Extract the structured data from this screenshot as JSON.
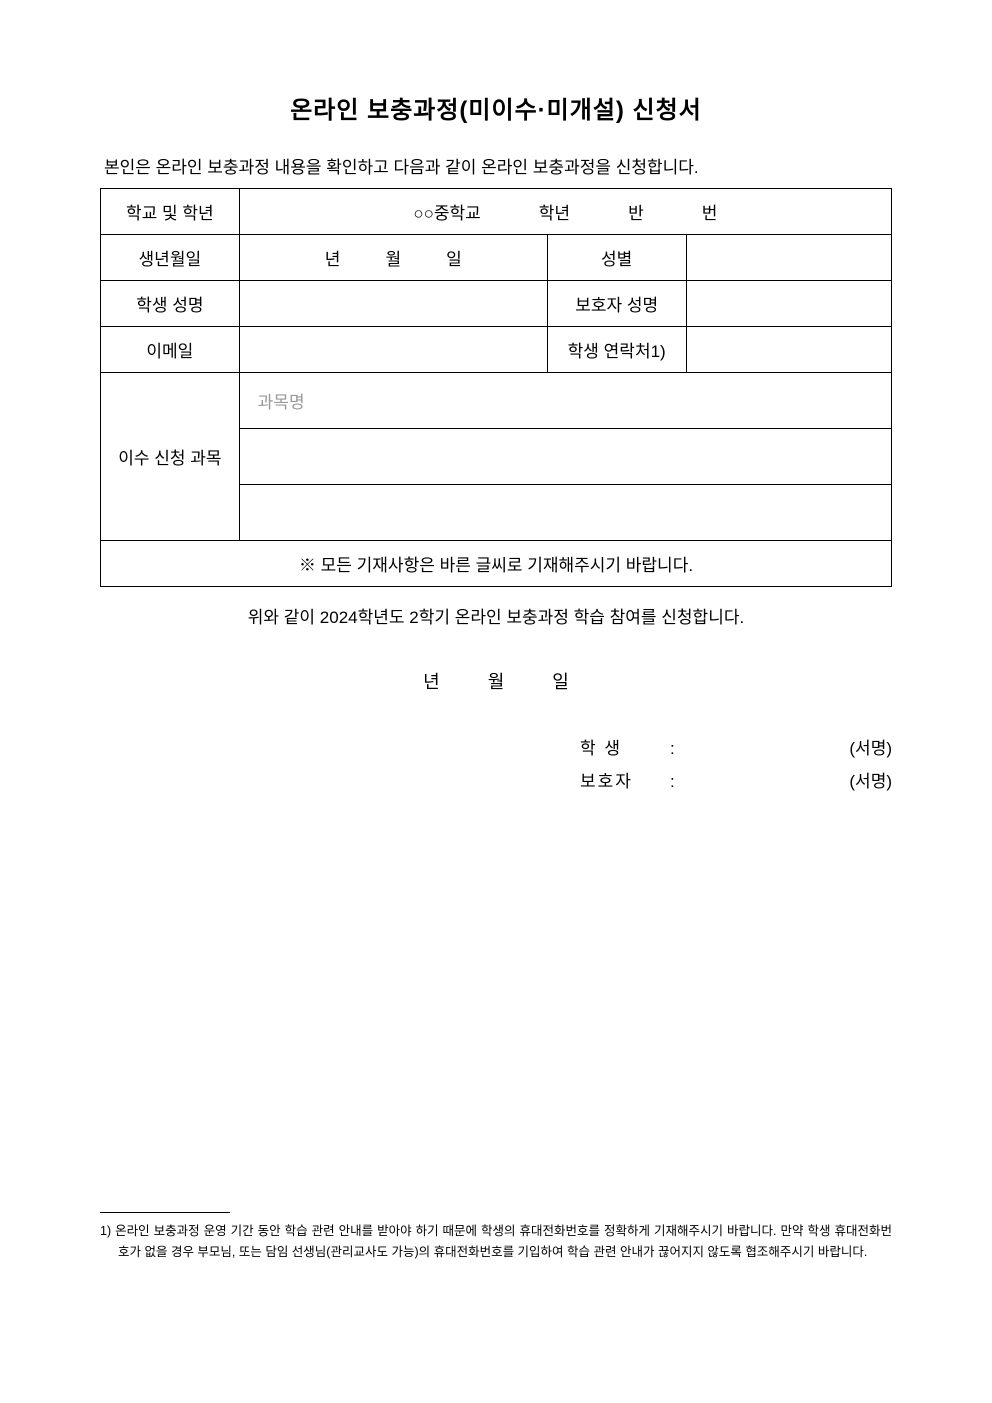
{
  "title": "온라인 보충과정(미이수·미개설) 신청서",
  "intro": "본인은 온라인 보충과정 내용을 확인하고 다음과 같이 온라인 보충과정을 신청합니다.",
  "table": {
    "row1": {
      "label": "학교 및 학년",
      "school": "○○중학교",
      "grade": "학년",
      "class": "반",
      "number": "번"
    },
    "row2": {
      "label": "생년월일",
      "year": "년",
      "month": "월",
      "day": "일",
      "gender_label": "성별",
      "gender_value": ""
    },
    "row3": {
      "label": "학생 성명",
      "value": "",
      "guardian_label": "보호자 성명",
      "guardian_value": ""
    },
    "row4": {
      "label": "이메일",
      "value": "",
      "contact_label": "학생 연락처1)",
      "contact_value": ""
    },
    "row5": {
      "label": "이수 신청 과목",
      "placeholder": "과목명",
      "r2": "",
      "r3": ""
    },
    "notice": "※ 모든 기재사항은 바른 글씨로 기재해주시기 바랍니다."
  },
  "confirm": "위와 같이 2024학년도 2학기 온라인 보충과정 학습 참여를 신청합니다.",
  "date": {
    "year": "년",
    "month": "월",
    "day": "일"
  },
  "sig": {
    "student_label": "학  생",
    "guardian_label": "보호자",
    "colon": ":",
    "mark": "(서명)"
  },
  "footnote": "1) 온라인 보충과정 운영 기간 동안 학습 관련 안내를 받아야 하기 때문에 학생의 휴대전화번호를 정확하게 기재해주시기 바랍니다. 만약 학생 휴대전화번호가 없을 경우 부모님, 또는 담임 선생님(관리교사도 가능)의 휴대전화번호를 기입하여 학습 관련 안내가 끊어지지 않도록 협조해주시기 바랍니다.",
  "colors": {
    "text": "#000000",
    "placeholder": "#999999",
    "background": "#ffffff",
    "border": "#000000"
  },
  "typography": {
    "title_fontsize": 24,
    "body_fontsize": 17,
    "footnote_fontsize": 12.5
  }
}
